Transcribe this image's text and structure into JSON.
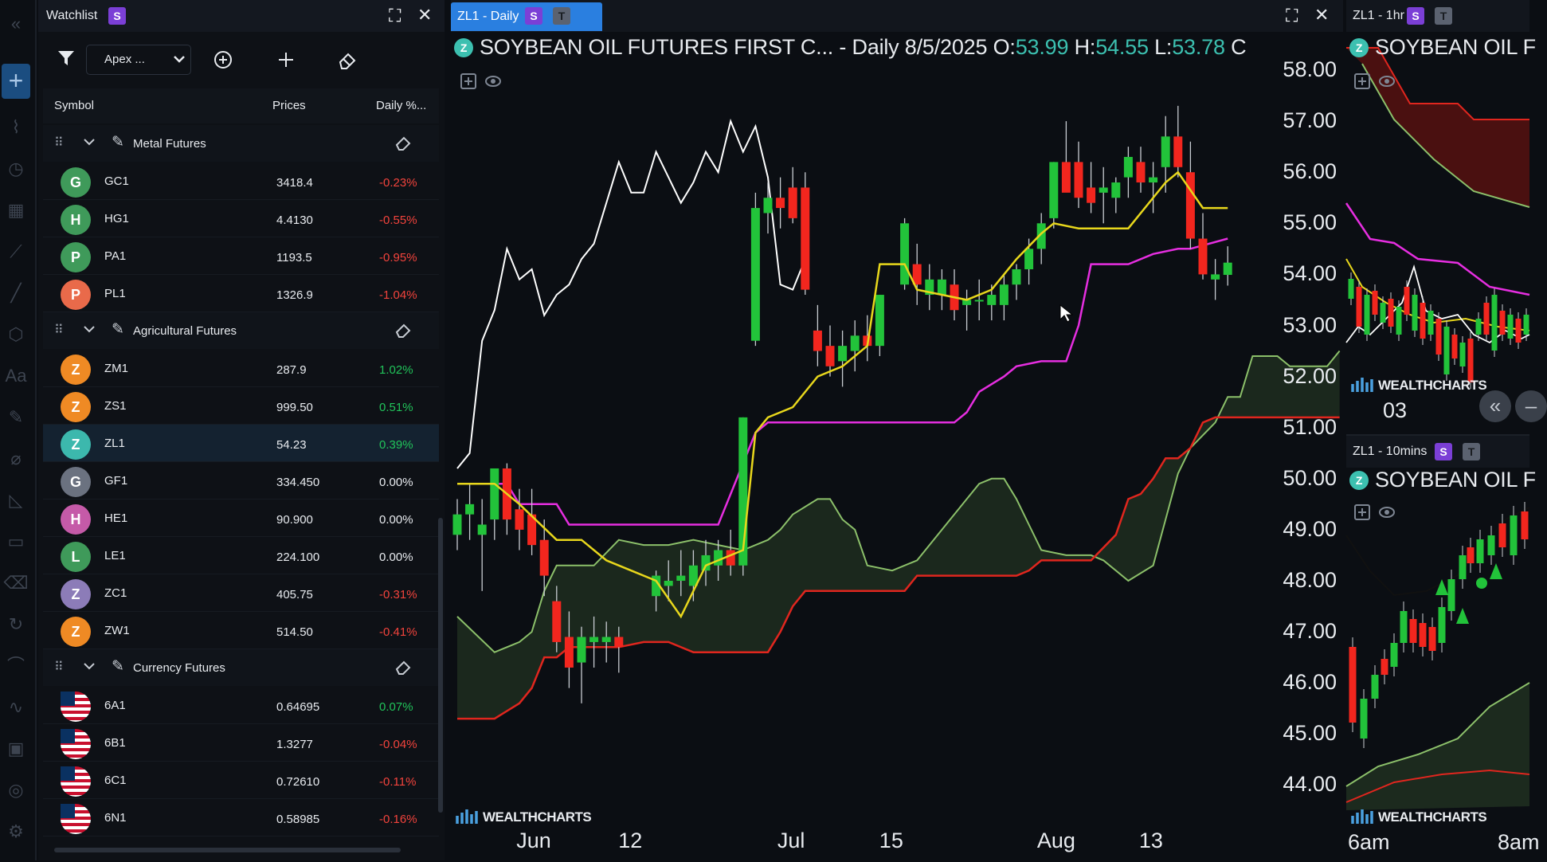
{
  "toolbar": {
    "items": [
      "collapse-icon",
      "crosshair-icon",
      "line-tool-icon",
      "clock-icon",
      "calendar-icon",
      "trend-icon",
      "ray-icon",
      "shape-icon",
      "text-icon",
      "pencil-icon",
      "ruler-icon",
      "measure-icon",
      "rectangle-icon",
      "eraser-icon",
      "refresh-icon",
      "indicator-icon",
      "drawing-icon",
      "layers-icon",
      "target-icon",
      "settings-icon"
    ]
  },
  "watchlist": {
    "title": "Watchlist",
    "badge_s": "S",
    "list_name": "Apex ...",
    "columns": {
      "symbol": "Symbol",
      "prices": "Prices",
      "daily": "Daily %..."
    },
    "groups": [
      {
        "name": "Metal Futures",
        "rows": [
          {
            "letter": "G",
            "color": "#3f9a5a",
            "symbol": "GC1",
            "price": "3418.4",
            "change": "-0.23%",
            "dir": "neg"
          },
          {
            "letter": "H",
            "color": "#3f9a5a",
            "symbol": "HG1",
            "price": "4.4130",
            "change": "-0.55%",
            "dir": "neg"
          },
          {
            "letter": "P",
            "color": "#3f9a5a",
            "symbol": "PA1",
            "price": "1193.5",
            "change": "-0.95%",
            "dir": "neg"
          },
          {
            "letter": "P",
            "color": "#e96a4a",
            "symbol": "PL1",
            "price": "1326.9",
            "change": "-1.04%",
            "dir": "neg"
          }
        ]
      },
      {
        "name": "Agricultural Futures",
        "rows": [
          {
            "letter": "Z",
            "color": "#ef8a24",
            "symbol": "ZM1",
            "price": "287.9",
            "change": "1.02%",
            "dir": "pos"
          },
          {
            "letter": "Z",
            "color": "#ef8a24",
            "symbol": "ZS1",
            "price": "999.50",
            "change": "0.51%",
            "dir": "pos"
          },
          {
            "letter": "Z",
            "color": "#3cb8ad",
            "symbol": "ZL1",
            "price": "54.23",
            "change": "0.39%",
            "dir": "pos",
            "selected": true
          },
          {
            "letter": "G",
            "color": "#6b7280",
            "symbol": "GF1",
            "price": "334.450",
            "change": "0.00%",
            "dir": "zero"
          },
          {
            "letter": "H",
            "color": "#c55aa8",
            "symbol": "HE1",
            "price": "90.900",
            "change": "0.00%",
            "dir": "zero"
          },
          {
            "letter": "L",
            "color": "#3f9a5a",
            "symbol": "LE1",
            "price": "224.100",
            "change": "0.00%",
            "dir": "zero"
          },
          {
            "letter": "Z",
            "color": "#8c7cb8",
            "symbol": "ZC1",
            "price": "405.75",
            "change": "-0.31%",
            "dir": "neg"
          },
          {
            "letter": "Z",
            "color": "#ef8a24",
            "symbol": "ZW1",
            "price": "514.50",
            "change": "-0.41%",
            "dir": "neg"
          }
        ]
      },
      {
        "name": "Currency Futures",
        "rows": [
          {
            "flag": true,
            "symbol": "6A1",
            "price": "0.64695",
            "change": "0.07%",
            "dir": "pos"
          },
          {
            "flag": true,
            "symbol": "6B1",
            "price": "1.3277",
            "change": "-0.04%",
            "dir": "neg"
          },
          {
            "flag": true,
            "symbol": "6C1",
            "price": "0.72610",
            "change": "-0.11%",
            "dir": "neg"
          },
          {
            "flag": true,
            "symbol": "6N1",
            "price": "0.58985",
            "change": "-0.16%",
            "dir": "neg"
          }
        ]
      }
    ]
  },
  "main_chart": {
    "tab_title": "ZL1 - Daily",
    "badge_s": "S",
    "badge_t": "T",
    "symbol_badge": "Z",
    "legend_title": "SOYBEAN OIL FUTURES FIRST C... - Daily",
    "legend_date": "8/5/2025",
    "o_label": "O:",
    "o_value": "53.99",
    "h_label": "H:",
    "h_value": "54.55",
    "l_label": "L:",
    "l_value": "53.78",
    "c_label": "C",
    "watermark": "WEALTHCHARTS",
    "colors": {
      "up": "#22c33a",
      "down": "#f2261e",
      "tenkan": "#e8d71c",
      "kijun": "#e62ee0",
      "lagging": "#ffffff",
      "span_b": "#e0261e",
      "span_a": "#8cc06a",
      "cloud": "#1c2a1e"
    }
  },
  "chart_data": {
    "type": "candlestick",
    "title": "SOYBEAN OIL FUTURES FIRST C... - Daily",
    "yticks": [
      "58.00",
      "57.00",
      "56.00",
      "55.00",
      "54.00",
      "53.00",
      "52.00",
      "51.00",
      "50.00",
      "49.00",
      "48.00",
      "47.00",
      "46.00",
      "45.00",
      "44.00"
    ],
    "ylim": [
      43.2,
      58.8
    ],
    "xticks": [
      "Jun",
      "12",
      "Jul",
      "15",
      "Aug",
      "13"
    ],
    "xtick_index": [
      6.3,
      14.5,
      27.3,
      35.5,
      48.2,
      56.4
    ],
    "x_count": 68,
    "candles": [
      [
        0,
        48.9,
        49.6,
        48.6,
        49.3
      ],
      [
        1,
        49.3,
        49.9,
        48.8,
        49.5
      ],
      [
        2,
        48.9,
        49.6,
        47.8,
        49.1
      ],
      [
        3,
        49.2,
        50.1,
        48.8,
        50.2
      ],
      [
        4,
        50.2,
        50.3,
        48.9,
        49.2
      ],
      [
        5,
        49.4,
        49.8,
        48.6,
        49.0
      ],
      [
        6,
        49.3,
        49.8,
        48.5,
        48.7
      ],
      [
        7,
        48.8,
        49.2,
        47.7,
        48.1
      ],
      [
        8,
        47.6,
        47.9,
        46.6,
        46.8
      ],
      [
        9,
        46.9,
        47.4,
        45.9,
        46.3
      ],
      [
        10,
        46.4,
        47.1,
        45.6,
        46.9
      ],
      [
        11,
        46.8,
        47.3,
        46.3,
        46.9
      ],
      [
        12,
        46.8,
        47.2,
        46.4,
        46.9
      ],
      [
        13,
        46.9,
        47.1,
        46.2,
        46.7
      ],
      [
        16,
        47.7,
        48.2,
        47.4,
        48.1
      ],
      [
        17,
        47.9,
        48.4,
        47.6,
        48.0
      ],
      [
        18,
        48.0,
        48.6,
        47.7,
        48.1
      ],
      [
        19,
        47.9,
        48.6,
        47.6,
        48.3
      ],
      [
        20,
        48.2,
        48.8,
        47.9,
        48.5
      ],
      [
        21,
        48.3,
        48.8,
        48.0,
        48.6
      ],
      [
        22,
        48.6,
        49.0,
        48.1,
        48.3
      ],
      [
        23,
        48.3,
        51.2,
        48.1,
        51.2
      ],
      [
        24,
        52.7,
        55.6,
        52.6,
        55.3
      ],
      [
        25,
        55.2,
        55.8,
        54.8,
        55.5
      ],
      [
        26,
        55.5,
        55.9,
        54.9,
        55.3
      ],
      [
        27,
        55.7,
        56.1,
        55.0,
        55.1
      ],
      [
        28,
        55.7,
        56.0,
        53.6,
        53.7
      ],
      [
        29,
        52.9,
        53.4,
        52.2,
        52.5
      ],
      [
        30,
        52.6,
        53.0,
        52.0,
        52.2
      ],
      [
        31,
        52.3,
        52.9,
        51.8,
        52.6
      ],
      [
        32,
        52.5,
        53.1,
        52.1,
        52.8
      ],
      [
        33,
        52.8,
        53.2,
        52.3,
        52.6
      ],
      [
        34,
        52.6,
        53.6,
        52.4,
        53.6
      ],
      [
        36,
        53.8,
        55.1,
        53.7,
        55.0
      ],
      [
        37,
        54.2,
        54.6,
        53.4,
        53.8
      ],
      [
        38,
        53.6,
        54.2,
        53.3,
        53.9
      ],
      [
        39,
        53.6,
        54.1,
        53.3,
        53.9
      ],
      [
        40,
        53.8,
        54.1,
        53.1,
        53.3
      ],
      [
        41,
        53.4,
        53.7,
        52.9,
        53.5
      ],
      [
        42,
        53.5,
        53.9,
        53.1,
        53.5
      ],
      [
        43,
        53.4,
        53.8,
        53.1,
        53.6
      ],
      [
        44,
        53.4,
        54.0,
        53.1,
        53.8
      ],
      [
        45,
        53.8,
        54.2,
        53.5,
        54.1
      ],
      [
        46,
        54.1,
        54.7,
        53.8,
        54.5
      ],
      [
        47,
        54.5,
        55.2,
        54.2,
        55.0
      ],
      [
        48,
        55.1,
        56.2,
        54.9,
        56.2
      ],
      [
        49,
        56.2,
        57.0,
        55.7,
        55.6
      ],
      [
        50,
        56.2,
        56.6,
        55.3,
        55.5
      ],
      [
        51,
        55.7,
        56.2,
        55.2,
        55.4
      ],
      [
        52,
        55.6,
        56.1,
        55.0,
        55.7
      ],
      [
        53,
        55.5,
        55.9,
        55.2,
        55.8
      ],
      [
        54,
        55.9,
        56.5,
        55.5,
        56.3
      ],
      [
        55,
        56.2,
        56.5,
        55.6,
        55.8
      ],
      [
        56,
        55.8,
        56.2,
        55.2,
        55.9
      ],
      [
        57,
        56.1,
        57.1,
        55.6,
        56.7
      ],
      [
        58,
        56.7,
        57.3,
        55.9,
        56.1
      ],
      [
        59,
        56.0,
        56.6,
        54.5,
        54.7
      ],
      [
        60,
        54.7,
        55.2,
        53.9,
        54.0
      ],
      [
        61,
        53.9,
        54.3,
        53.5,
        54.0
      ],
      [
        62,
        53.99,
        54.55,
        53.78,
        54.23
      ]
    ],
    "tenkan": [
      [
        0,
        49.9
      ],
      [
        3,
        49.9
      ],
      [
        5,
        49.5
      ],
      [
        8,
        48.8
      ],
      [
        10,
        48.8
      ],
      [
        12,
        48.4
      ],
      [
        14,
        48.2
      ],
      [
        16,
        48.0
      ],
      [
        18,
        47.3
      ],
      [
        20,
        48.3
      ],
      [
        23,
        48.6
      ],
      [
        24,
        50.9
      ],
      [
        25,
        51.2
      ],
      [
        27,
        51.4
      ],
      [
        29,
        52.0
      ],
      [
        31,
        52.2
      ],
      [
        33,
        52.6
      ],
      [
        34,
        54.2
      ],
      [
        36,
        54.2
      ],
      [
        37,
        53.7
      ],
      [
        41,
        53.5
      ],
      [
        43,
        53.7
      ],
      [
        45,
        54.3
      ],
      [
        47,
        54.8
      ],
      [
        48,
        55.0
      ],
      [
        50,
        54.9
      ],
      [
        54,
        54.9
      ],
      [
        57,
        55.8
      ],
      [
        58,
        56.0
      ],
      [
        60,
        55.3
      ],
      [
        62,
        55.3
      ]
    ],
    "kijun": [
      [
        0,
        49.9
      ],
      [
        4,
        49.9
      ],
      [
        5,
        49.5
      ],
      [
        8,
        49.5
      ],
      [
        9,
        49.1
      ],
      [
        21,
        49.1
      ],
      [
        24,
        50.9
      ],
      [
        25,
        51.1
      ],
      [
        40,
        51.1
      ],
      [
        41,
        51.3
      ],
      [
        42,
        51.7
      ],
      [
        44,
        52.0
      ],
      [
        45,
        52.2
      ],
      [
        47,
        52.3
      ],
      [
        49,
        52.3
      ],
      [
        50,
        53.0
      ],
      [
        51,
        54.2
      ],
      [
        54,
        54.2
      ],
      [
        56,
        54.4
      ],
      [
        58,
        54.5
      ],
      [
        59,
        54.5
      ],
      [
        62,
        54.7
      ]
    ],
    "lagging": [
      [
        0,
        50.2
      ],
      [
        1,
        50.5
      ],
      [
        2,
        52.7
      ],
      [
        3,
        53.3
      ],
      [
        4,
        54.5
      ],
      [
        5,
        53.9
      ],
      [
        6,
        54.1
      ],
      [
        7,
        53.2
      ],
      [
        8,
        53.6
      ],
      [
        9,
        53.8
      ],
      [
        10,
        54.3
      ],
      [
        11,
        54.6
      ],
      [
        12,
        55.4
      ],
      [
        13,
        56.2
      ],
      [
        14,
        55.6
      ],
      [
        15,
        55.6
      ],
      [
        16,
        56.4
      ],
      [
        17,
        55.9
      ],
      [
        18,
        55.4
      ],
      [
        19,
        55.8
      ],
      [
        20,
        56.4
      ],
      [
        21,
        56.0
      ],
      [
        22,
        57.0
      ],
      [
        23,
        56.4
      ],
      [
        24,
        56.9
      ],
      [
        25,
        55.9
      ],
      [
        26,
        53.8
      ],
      [
        27,
        53.7
      ],
      [
        28,
        54.3
      ]
    ],
    "span_a": [
      [
        0,
        47.3
      ],
      [
        3,
        46.6
      ],
      [
        5,
        46.8
      ],
      [
        6,
        47.0
      ],
      [
        7,
        47.8
      ],
      [
        8,
        48.3
      ],
      [
        9,
        48.3
      ],
      [
        11,
        48.3
      ],
      [
        13,
        48.8
      ],
      [
        15,
        48.7
      ],
      [
        17,
        48.7
      ],
      [
        19,
        48.8
      ],
      [
        21,
        48.7
      ],
      [
        23,
        48.6
      ],
      [
        25,
        48.8
      ],
      [
        26,
        49.0
      ],
      [
        27,
        49.3
      ],
      [
        29,
        49.6
      ],
      [
        30,
        49.6
      ],
      [
        31,
        49.2
      ],
      [
        32,
        49.0
      ],
      [
        33,
        48.3
      ],
      [
        35,
        48.2
      ],
      [
        37,
        48.4
      ],
      [
        39,
        49.0
      ],
      [
        41,
        49.6
      ],
      [
        42,
        49.9
      ],
      [
        43,
        50.0
      ],
      [
        44,
        50.0
      ],
      [
        45,
        49.6
      ],
      [
        46,
        49.1
      ],
      [
        47,
        48.6
      ],
      [
        49,
        48.5
      ],
      [
        51,
        48.5
      ],
      [
        52,
        48.4
      ],
      [
        54,
        48.0
      ],
      [
        56,
        48.3
      ],
      [
        57,
        49.2
      ],
      [
        58,
        50.1
      ],
      [
        59,
        50.6
      ],
      [
        61,
        51.1
      ],
      [
        62,
        51.6
      ],
      [
        63,
        51.6
      ],
      [
        64,
        52.4
      ],
      [
        66,
        52.4
      ],
      [
        67,
        52.2
      ],
      [
        68,
        52.2
      ],
      [
        70,
        52.2
      ],
      [
        71,
        52.5
      ]
    ],
    "span_b": [
      [
        0,
        45.3
      ],
      [
        3,
        45.3
      ],
      [
        5,
        45.6
      ],
      [
        6,
        45.9
      ],
      [
        7,
        46.5
      ],
      [
        8,
        46.5
      ],
      [
        9,
        46.7
      ],
      [
        11,
        46.7
      ],
      [
        13,
        46.7
      ],
      [
        15,
        46.8
      ],
      [
        17,
        46.8
      ],
      [
        19,
        46.6
      ],
      [
        21,
        46.6
      ],
      [
        23,
        46.6
      ],
      [
        24,
        46.6
      ],
      [
        25,
        46.6
      ],
      [
        26,
        47.0
      ],
      [
        27,
        47.5
      ],
      [
        28,
        47.8
      ],
      [
        31,
        47.8
      ],
      [
        34,
        47.8
      ],
      [
        36,
        47.8
      ],
      [
        37,
        48.1
      ],
      [
        39,
        48.1
      ],
      [
        41,
        48.1
      ],
      [
        43,
        48.1
      ],
      [
        45,
        48.1
      ],
      [
        46,
        48.2
      ],
      [
        47,
        48.4
      ],
      [
        49,
        48.4
      ],
      [
        51,
        48.4
      ],
      [
        53,
        48.9
      ],
      [
        54,
        49.6
      ],
      [
        55,
        49.7
      ],
      [
        56,
        50.0
      ],
      [
        57,
        50.4
      ],
      [
        58,
        50.4
      ],
      [
        59,
        50.6
      ],
      [
        60,
        51.1
      ],
      [
        61,
        51.2
      ],
      [
        63,
        51.2
      ],
      [
        66,
        51.2
      ],
      [
        68,
        51.2
      ],
      [
        71,
        51.2
      ]
    ]
  },
  "right_top": {
    "tab_title": "ZL1 - 1hr",
    "badge_s": "S",
    "badge_t": "T",
    "symbol_badge": "Z",
    "legend_title": "SOYBEAN OIL F",
    "watermark": "WEALTHCHARTS",
    "axis_label": "03",
    "nav_back": "«",
    "nav_minus": "–"
  },
  "right_bottom": {
    "tab_title": "ZL1 - 10mins",
    "badge_s": "S",
    "badge_t": "T",
    "symbol_badge": "Z",
    "legend_title": "SOYBEAN OIL F",
    "watermark": "WEALTHCHARTS",
    "x_tick_1": "6am",
    "x_tick_2": "8am"
  }
}
